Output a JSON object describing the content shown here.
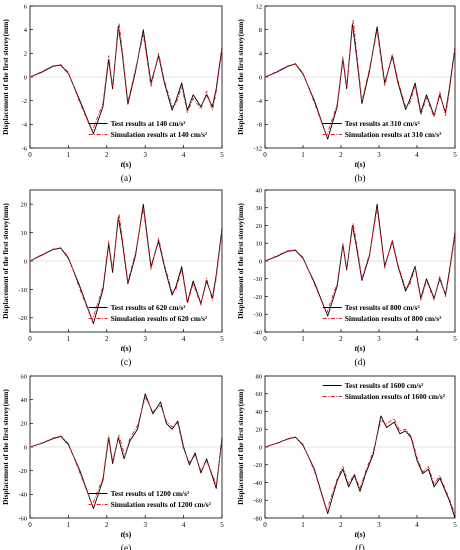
{
  "chart_data": [
    {
      "type": "line",
      "panel_label": "(a)",
      "xlabel_italic": "t",
      "xlabel_unit": "(s)",
      "ylabel": "Displacement of the first storey(mm)",
      "xlim": [
        0,
        5
      ],
      "ylim": [
        -6,
        6
      ],
      "xticks": [
        0,
        1,
        2,
        3,
        4,
        5
      ],
      "yticks": [
        -6,
        -4,
        -2,
        0,
        2,
        4,
        6
      ],
      "legend_placement": "bottom-center",
      "colors": {
        "test": "#000000",
        "simulation": "#e0202a"
      },
      "series": [
        {
          "name": "Test results at 140 cm/s²",
          "style": "solid",
          "x": [
            0,
            0.3,
            0.6,
            0.8,
            1.0,
            1.3,
            1.65,
            1.9,
            2.05,
            2.15,
            2.3,
            2.4,
            2.55,
            2.75,
            2.95,
            3.15,
            3.35,
            3.5,
            3.7,
            3.8,
            3.95,
            4.1,
            4.25,
            4.45,
            4.6,
            4.75,
            4.85,
            5.0
          ],
          "y": [
            0,
            0.4,
            0.9,
            1.0,
            0.3,
            -2.0,
            -4.8,
            -2.5,
            1.5,
            -1.0,
            4.3,
            2.0,
            -2.3,
            0.5,
            4.0,
            -0.5,
            1.8,
            -0.5,
            -2.8,
            -2.0,
            -0.5,
            -2.8,
            -1.5,
            -2.5,
            -1.5,
            -2.5,
            -1.0,
            2.5
          ]
        },
        {
          "name": "Simulation results at 140 cm/s²",
          "style": "dash-dot",
          "x": [
            0,
            0.3,
            0.6,
            0.8,
            1.0,
            1.3,
            1.62,
            1.9,
            2.05,
            2.15,
            2.32,
            2.42,
            2.55,
            2.75,
            2.95,
            3.15,
            3.35,
            3.5,
            3.7,
            3.8,
            3.95,
            4.1,
            4.25,
            4.45,
            4.6,
            4.75,
            4.85,
            5.0
          ],
          "y": [
            0,
            0.45,
            0.95,
            1.05,
            0.4,
            -2.2,
            -4.6,
            -2.2,
            1.8,
            -0.8,
            4.5,
            1.8,
            -2.1,
            0.7,
            3.6,
            -0.8,
            2.0,
            -0.3,
            -2.5,
            -2.3,
            -0.8,
            -3.0,
            -1.8,
            -2.7,
            -1.2,
            -2.8,
            -1.3,
            2.3
          ]
        }
      ]
    },
    {
      "type": "line",
      "panel_label": "(b)",
      "xlabel_italic": "t",
      "xlabel_unit": "(s)",
      "ylabel": "Displacement of the first storey(mm)",
      "xlim": [
        0,
        5
      ],
      "ylim": [
        -12,
        12
      ],
      "xticks": [
        0,
        1,
        2,
        3,
        4,
        5
      ],
      "yticks": [
        -12,
        -8,
        -4,
        0,
        4,
        8,
        12
      ],
      "legend_placement": "bottom-center",
      "colors": {
        "test": "#000000",
        "simulation": "#e0202a"
      },
      "series": [
        {
          "name": "Test results at 310 cm/s²",
          "style": "solid",
          "x": [
            0,
            0.3,
            0.6,
            0.8,
            1.0,
            1.3,
            1.65,
            1.9,
            2.05,
            2.15,
            2.3,
            2.4,
            2.55,
            2.75,
            2.95,
            3.15,
            3.35,
            3.5,
            3.7,
            3.8,
            3.95,
            4.1,
            4.25,
            4.45,
            4.6,
            4.75,
            4.85,
            5.0
          ],
          "y": [
            0,
            0.8,
            1.8,
            2.2,
            0.5,
            -4.0,
            -10.5,
            -5.0,
            3.0,
            -2.0,
            9.0,
            4.0,
            -4.5,
            1.0,
            8.5,
            -1.0,
            3.5,
            -1.0,
            -5.5,
            -4.0,
            -1.0,
            -6.0,
            -3.0,
            -6.5,
            -3.0,
            -6.0,
            -2.0,
            5.0
          ]
        },
        {
          "name": "Simulation results at 310 cm/s²",
          "style": "dash-dot",
          "x": [
            0,
            0.3,
            0.6,
            0.8,
            1.0,
            1.3,
            1.62,
            1.9,
            2.05,
            2.15,
            2.32,
            2.42,
            2.55,
            2.75,
            2.95,
            3.15,
            3.35,
            3.5,
            3.7,
            3.8,
            3.95,
            4.1,
            4.25,
            4.45,
            4.6,
            4.75,
            4.85,
            5.0
          ],
          "y": [
            0,
            0.9,
            1.9,
            2.3,
            0.7,
            -4.4,
            -10.0,
            -4.6,
            3.4,
            -1.6,
            9.6,
            3.7,
            -4.1,
            1.4,
            7.8,
            -1.5,
            3.9,
            -0.6,
            -5.0,
            -4.6,
            -1.6,
            -6.4,
            -3.5,
            -6.8,
            -2.5,
            -6.5,
            -2.5,
            4.6
          ]
        }
      ]
    },
    {
      "type": "line",
      "panel_label": "(c)",
      "xlabel_italic": "t",
      "xlabel_unit": "(s)",
      "ylabel": "Displacement of the first storey(mm)",
      "xlim": [
        0,
        5
      ],
      "ylim": [
        -25,
        25
      ],
      "xticks": [
        0,
        1,
        2,
        3,
        4,
        5
      ],
      "yticks": [
        -20,
        -10,
        0,
        10,
        20
      ],
      "legend_placement": "bottom-center",
      "colors": {
        "test": "#000000",
        "simulation": "#e0202a"
      },
      "series": [
        {
          "name": "Test results of 620 cm/s²",
          "style": "solid",
          "x": [
            0,
            0.3,
            0.6,
            0.8,
            1.0,
            1.3,
            1.65,
            1.9,
            2.05,
            2.15,
            2.3,
            2.4,
            2.55,
            2.75,
            2.95,
            3.15,
            3.35,
            3.5,
            3.7,
            3.8,
            3.95,
            4.1,
            4.25,
            4.45,
            4.6,
            4.75,
            4.85,
            5.0
          ],
          "y": [
            0,
            2.0,
            4.0,
            4.5,
            1.0,
            -9.0,
            -22.0,
            -10.0,
            6.0,
            -4.0,
            15.5,
            7.0,
            -8.0,
            2.0,
            20.0,
            -2.0,
            7.0,
            -2.0,
            -12.0,
            -9.0,
            -2.0,
            -14.5,
            -7.0,
            -15.0,
            -7.0,
            -13.0,
            -5.0,
            11.5
          ]
        },
        {
          "name": "Simulation results of 620 cm/s²",
          "style": "dash-dot",
          "x": [
            0,
            0.3,
            0.6,
            0.8,
            1.0,
            1.3,
            1.62,
            1.9,
            2.05,
            2.15,
            2.32,
            2.42,
            2.55,
            2.75,
            2.95,
            3.15,
            3.35,
            3.5,
            3.7,
            3.8,
            3.95,
            4.1,
            4.25,
            4.45,
            4.6,
            4.75,
            4.85,
            5.0
          ],
          "y": [
            0,
            2.2,
            4.2,
            4.7,
            1.4,
            -10.0,
            -21.0,
            -9.0,
            7.0,
            -3.0,
            16.5,
            6.5,
            -7.2,
            3.0,
            18.5,
            -3.0,
            8.0,
            -1.2,
            -11.0,
            -10.0,
            -3.0,
            -15.0,
            -8.0,
            -15.5,
            -6.0,
            -14.0,
            -6.0,
            10.5
          ]
        }
      ]
    },
    {
      "type": "line",
      "panel_label": "(d)",
      "xlabel_italic": "t",
      "xlabel_unit": "(s)",
      "ylabel": "Displacement of the first storey(mm)",
      "xlim": [
        0,
        5
      ],
      "ylim": [
        -40,
        40
      ],
      "xticks": [
        0,
        1,
        2,
        3,
        4,
        5
      ],
      "yticks": [
        -40,
        -30,
        -20,
        -10,
        0,
        10,
        20,
        30,
        40
      ],
      "legend_placement": "bottom-center",
      "colors": {
        "test": "#000000",
        "simulation": "#e0202a"
      },
      "series": [
        {
          "name": "Test results of 800 cm/s²",
          "style": "solid",
          "x": [
            0,
            0.3,
            0.6,
            0.8,
            1.0,
            1.3,
            1.65,
            1.9,
            2.05,
            2.15,
            2.3,
            2.4,
            2.55,
            2.75,
            2.95,
            3.15,
            3.35,
            3.5,
            3.7,
            3.8,
            3.95,
            4.1,
            4.25,
            4.45,
            4.6,
            4.75,
            4.85,
            5.0
          ],
          "y": [
            0,
            2.5,
            5.5,
            6.0,
            1.5,
            -12.0,
            -31.0,
            -14.0,
            9.0,
            -5.0,
            20.0,
            9.0,
            -11.0,
            3.0,
            32.0,
            -3.0,
            11.0,
            -3.0,
            -17.0,
            -12.0,
            -3.0,
            -21.0,
            -10.0,
            -21.0,
            -10.0,
            -19.0,
            -6.0,
            16.0
          ]
        },
        {
          "name": "Simulation results of 800 cm/s²",
          "style": "dash-dot",
          "x": [
            0,
            0.3,
            0.6,
            0.8,
            1.0,
            1.3,
            1.62,
            1.9,
            2.05,
            2.15,
            2.32,
            2.42,
            2.55,
            2.75,
            2.95,
            3.15,
            3.35,
            3.5,
            3.7,
            3.8,
            3.95,
            4.1,
            4.25,
            4.45,
            4.6,
            4.75,
            4.85,
            5.0
          ],
          "y": [
            0,
            2.8,
            5.8,
            6.3,
            2.0,
            -13.0,
            -29.5,
            -12.5,
            10.0,
            -4.0,
            21.0,
            8.5,
            -10.0,
            4.0,
            29.5,
            -4.0,
            12.0,
            -2.0,
            -15.5,
            -14.0,
            -4.0,
            -22.0,
            -11.0,
            -22.0,
            -8.5,
            -20.0,
            -7.5,
            15.0
          ]
        }
      ]
    },
    {
      "type": "line",
      "panel_label": "(e)",
      "xlabel_italic": "t",
      "xlabel_unit": "(s)",
      "ylabel": "Displacement of the first storey(mm)",
      "xlim": [
        0,
        5
      ],
      "ylim": [
        -60,
        60
      ],
      "xticks": [
        0,
        1,
        2,
        3,
        4,
        5
      ],
      "yticks": [
        -60,
        -40,
        -20,
        0,
        20,
        40,
        60
      ],
      "legend_placement": "bottom-center",
      "colors": {
        "test": "#000000",
        "simulation": "#e0202a"
      },
      "series": [
        {
          "name": "Test results of 1200 cm/s²",
          "style": "solid",
          "x": [
            0,
            0.3,
            0.6,
            0.8,
            1.0,
            1.3,
            1.65,
            1.9,
            2.05,
            2.15,
            2.3,
            2.45,
            2.6,
            2.8,
            3.0,
            3.2,
            3.4,
            3.55,
            3.7,
            3.85,
            4.0,
            4.15,
            4.3,
            4.45,
            4.6,
            4.75,
            4.85,
            5.0
          ],
          "y": [
            0,
            3.0,
            7.0,
            9.0,
            2.0,
            -20.0,
            -52.0,
            -28.0,
            8.0,
            -14.0,
            8.0,
            -10.0,
            5.0,
            15.0,
            45.0,
            28.0,
            38.0,
            20.0,
            15.0,
            22.0,
            0.0,
            -15.0,
            -5.0,
            -22.0,
            -10.0,
            -25.0,
            -35.0,
            8.0
          ]
        },
        {
          "name": "Simulation results of 1200 cm/s²",
          "style": "dash-dot",
          "x": [
            0,
            0.3,
            0.6,
            0.8,
            1.0,
            1.3,
            1.62,
            1.9,
            2.05,
            2.15,
            2.32,
            2.47,
            2.6,
            2.8,
            3.0,
            3.2,
            3.4,
            3.55,
            3.7,
            3.85,
            4.0,
            4.15,
            4.3,
            4.45,
            4.6,
            4.75,
            4.85,
            5.0
          ],
          "y": [
            0,
            3.2,
            7.5,
            9.5,
            3.0,
            -22.0,
            -49.0,
            -26.0,
            10.0,
            -12.0,
            10.0,
            -8.0,
            7.0,
            18.0,
            42.0,
            30.0,
            35.0,
            22.0,
            17.0,
            20.0,
            -2.0,
            -13.0,
            -7.0,
            -20.0,
            -12.0,
            -23.0,
            -32.0,
            6.0
          ]
        }
      ]
    },
    {
      "type": "line",
      "panel_label": "(f)",
      "xlabel_italic": "t",
      "xlabel_unit": "(s)",
      "ylabel": "Displacement of the first storey(mm)",
      "xlim": [
        0,
        5
      ],
      "ylim": [
        -80,
        80
      ],
      "xticks": [
        0,
        1,
        2,
        3,
        4,
        5
      ],
      "yticks": [
        -80,
        -60,
        -40,
        -20,
        0,
        20,
        40,
        60,
        80
      ],
      "legend_placement": "top-center",
      "colors": {
        "test": "#000000",
        "simulation": "#e0202a"
      },
      "series": [
        {
          "name": "Test results of 1600 cm/s²",
          "style": "solid",
          "x": [
            0,
            0.3,
            0.6,
            0.8,
            1.0,
            1.3,
            1.65,
            1.9,
            2.05,
            2.2,
            2.35,
            2.5,
            2.65,
            2.85,
            3.05,
            3.2,
            3.4,
            3.55,
            3.7,
            3.85,
            4.0,
            4.15,
            4.3,
            4.45,
            4.6,
            4.75,
            4.85,
            5.0
          ],
          "y": [
            0,
            4.0,
            9.0,
            11.0,
            2.0,
            -25.0,
            -75.0,
            -38.0,
            -25.0,
            -45.0,
            -32.0,
            -50.0,
            -30.0,
            -8.0,
            35.0,
            22.0,
            28.0,
            15.0,
            18.0,
            10.0,
            -15.0,
            -30.0,
            -25.0,
            -45.0,
            -35.0,
            -50.0,
            -60.0,
            -80.0
          ]
        },
        {
          "name": "Simulation results of 1600 cm/s²",
          "style": "dash-dot",
          "x": [
            0,
            0.3,
            0.6,
            0.8,
            1.0,
            1.3,
            1.62,
            1.9,
            2.05,
            2.2,
            2.35,
            2.5,
            2.65,
            2.85,
            3.05,
            3.2,
            3.4,
            3.55,
            3.7,
            3.85,
            4.0,
            4.15,
            4.3,
            4.45,
            4.6,
            4.75,
            4.85,
            5.0
          ],
          "y": [
            0,
            4.2,
            9.5,
            11.5,
            3.0,
            -27.0,
            -72.0,
            -36.0,
            -22.0,
            -42.0,
            -30.0,
            -47.0,
            -27.0,
            -5.0,
            30.0,
            26.0,
            32.0,
            18.0,
            20.0,
            12.0,
            -12.0,
            -28.0,
            -22.0,
            -42.0,
            -32.0,
            -48.0,
            -58.0,
            -76.0
          ]
        }
      ]
    }
  ]
}
